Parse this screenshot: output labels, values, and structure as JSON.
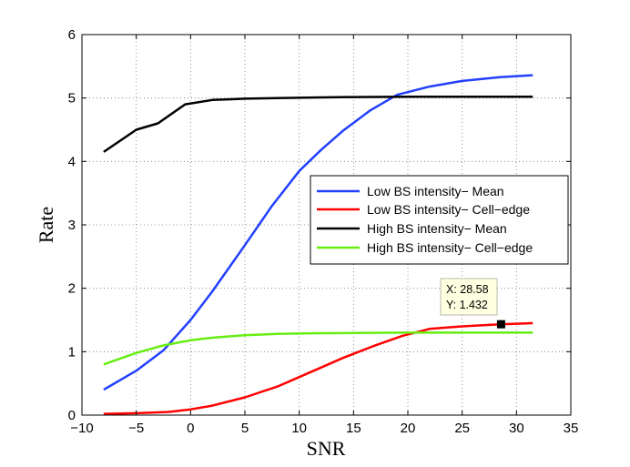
{
  "chart_data": {
    "type": "line",
    "title": "",
    "xlabel": "SNR",
    "ylabel": "Rate",
    "xlim": [
      -10,
      35
    ],
    "ylim": [
      0,
      6
    ],
    "xticks": [
      -10,
      -5,
      0,
      5,
      10,
      15,
      20,
      25,
      30,
      35
    ],
    "yticks": [
      0,
      1,
      2,
      3,
      4,
      5,
      6
    ],
    "xtick_labels": [
      "−10",
      "−5",
      "0",
      "5",
      "10",
      "15",
      "20",
      "25",
      "30",
      "35"
    ],
    "ytick_labels": [
      "0",
      "1",
      "2",
      "3",
      "4",
      "5",
      "6"
    ],
    "grid": true,
    "legend_position": "center-right",
    "series": [
      {
        "name": "Low BS intensity− Mean",
        "color": "#2240ff",
        "x": [
          -8,
          -5,
          -2.5,
          0,
          2,
          5,
          7.5,
          10,
          12,
          14,
          16.5,
          19,
          22,
          25,
          28.5,
          31.5
        ],
        "y": [
          0.4,
          0.7,
          1.02,
          1.5,
          1.95,
          2.68,
          3.3,
          3.85,
          4.18,
          4.48,
          4.8,
          5.05,
          5.18,
          5.27,
          5.33,
          5.36
        ]
      },
      {
        "name": "Low BS intensity− Cell−edge",
        "color": "#ff0000",
        "x": [
          -8,
          -5,
          -2,
          0,
          2,
          5,
          8,
          10,
          12,
          14,
          17,
          19.5,
          22,
          25,
          28.5,
          31.5
        ],
        "y": [
          0.02,
          0.03,
          0.05,
          0.09,
          0.15,
          0.28,
          0.45,
          0.6,
          0.75,
          0.9,
          1.1,
          1.25,
          1.36,
          1.4,
          1.432,
          1.45
        ]
      },
      {
        "name": "High BS intensity− Mean",
        "color": "#000000",
        "x": [
          -8,
          -5,
          -3,
          -0.5,
          2,
          5,
          8,
          12,
          15,
          20,
          25,
          31.5
        ],
        "y": [
          4.15,
          4.5,
          4.6,
          4.9,
          4.97,
          4.99,
          5.0,
          5.01,
          5.015,
          5.02,
          5.02,
          5.02
        ]
      },
      {
        "name": "High BS intensity− Cell−edge",
        "color": "#66ee11",
        "x": [
          -8,
          -5,
          -2.5,
          0,
          2,
          5,
          8,
          11,
          15,
          20,
          25,
          31.5
        ],
        "y": [
          0.8,
          0.98,
          1.1,
          1.18,
          1.22,
          1.26,
          1.28,
          1.29,
          1.295,
          1.3,
          1.3,
          1.3
        ]
      }
    ],
    "annotations": [
      {
        "type": "datatip",
        "x": 28.58,
        "y": 1.432,
        "lines": [
          "X: 28.58",
          "Y: 1.432"
        ]
      }
    ]
  }
}
